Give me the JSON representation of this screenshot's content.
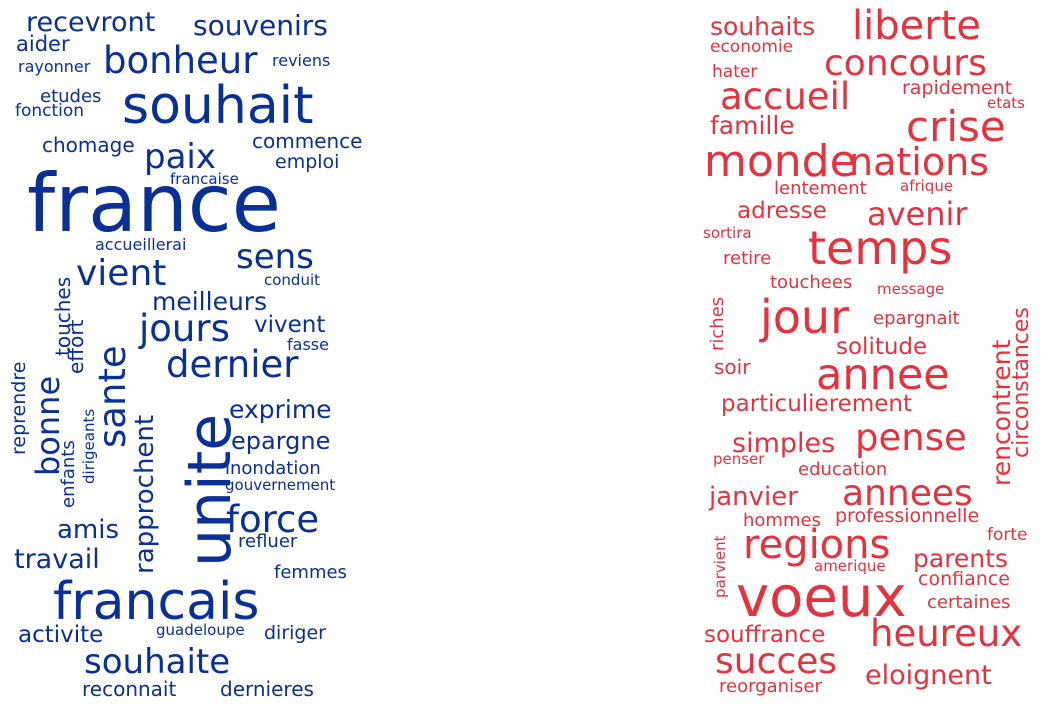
{
  "clouds": [
    {
      "id": "blue",
      "color": "#0a2f96",
      "words": [
        "recevront",
        "souvenirs",
        "aider",
        "bonheur",
        "rayonner",
        "reviens",
        "souhait",
        "etudes",
        "fonction",
        "chomage",
        "commence",
        "paix",
        "emploi",
        "francaise",
        "france",
        "accueillerai",
        "sens",
        "vient",
        "touches",
        "conduit",
        "meilleurs",
        "jours",
        "vivent",
        "effort",
        "sante",
        "fasse",
        "dernier",
        "reprendre",
        "bonne",
        "rapprochent",
        "exprime",
        "enfants",
        "dirigeants",
        "unite",
        "epargne",
        "inondation",
        "gouvernement",
        "force",
        "amis",
        "refluer",
        "travail",
        "femmes",
        "francais",
        "activite",
        "guadeloupe",
        "diriger",
        "souhaite",
        "reconnait",
        "dernieres"
      ]
    },
    {
      "id": "red",
      "color": "#e8313e",
      "words": [
        "souhaits",
        "liberte",
        "economie",
        "concours",
        "hater",
        "rapidement",
        "accueil",
        "etats",
        "famille",
        "crise",
        "monde",
        "nations",
        "lentement",
        "afrique",
        "adresse",
        "avenir",
        "sortira",
        "temps",
        "retire",
        "touchees",
        "message",
        "riches",
        "jour",
        "epargnait",
        "circonstances",
        "rencontrent",
        "solitude",
        "soir",
        "annee",
        "particulierement",
        "simples",
        "pense",
        "penser",
        "education",
        "janvier",
        "annees",
        "hommes",
        "professionnelle",
        "regions",
        "parvient",
        "forte",
        "parents",
        "amerique",
        "confiance",
        "voeux",
        "certaines",
        "souffrance",
        "heureux",
        "succes",
        "reorganiser",
        "eloignent"
      ]
    }
  ]
}
